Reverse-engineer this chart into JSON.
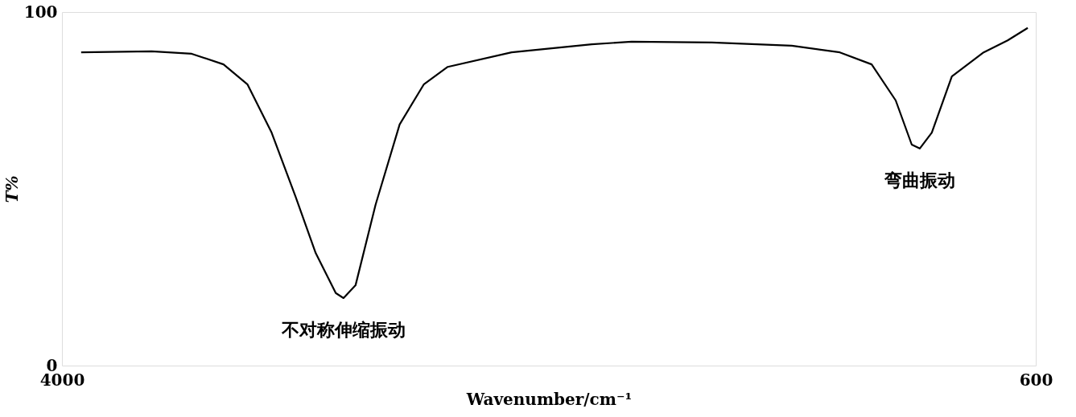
{
  "chart_data": {
    "type": "line",
    "xlabel": "Wavenumber/cm⁻¹",
    "ylabel": "T%",
    "xlim": [
      4000,
      600
    ],
    "ylim": [
      0,
      100
    ],
    "xticks": [
      4000,
      600
    ],
    "yticks": [
      0,
      100
    ],
    "grid": false,
    "marker": "none",
    "line_style": "solid",
    "x": [
      3933,
      3687,
      3547,
      3436,
      3352,
      3268,
      3184,
      3114,
      3044,
      3017,
      2975,
      2905,
      2821,
      2737,
      2653,
      2430,
      2150,
      2011,
      1731,
      1452,
      1284,
      1173,
      1089,
      1033,
      1005,
      963,
      893,
      782,
      698,
      628
    ],
    "series": [
      {
        "color": "#000000",
        "values": [
          88.6,
          88.9,
          88.2,
          85.2,
          79.5,
          65.9,
          47.7,
          31.8,
          20.5,
          19.1,
          22.7,
          45.5,
          68.2,
          79.5,
          84.5,
          88.6,
          90.9,
          91.6,
          91.4,
          90.5,
          88.6,
          85.2,
          75.0,
          62.5,
          61.4,
          65.9,
          81.8,
          88.6,
          92.0,
          95.5
        ]
      }
    ],
    "annotations": [
      {
        "text": "不对称伸缩振动",
        "x": 3017,
        "y": 19.1
      },
      {
        "text": "弯曲振动",
        "x": 1005,
        "y": 61.4
      }
    ]
  }
}
